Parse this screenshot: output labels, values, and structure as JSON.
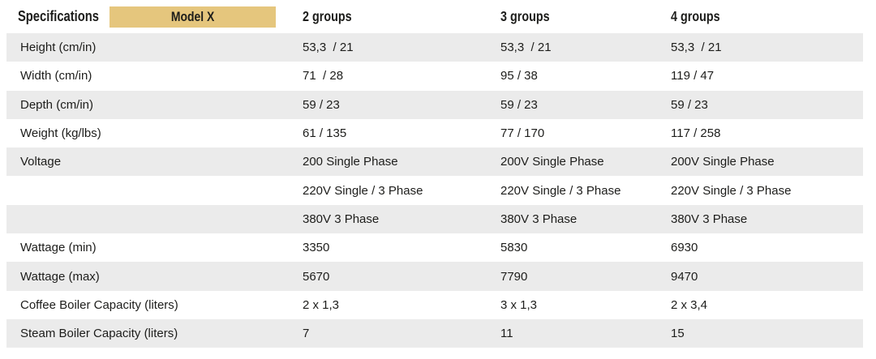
{
  "header": {
    "title": "Specifications",
    "model_badge": "Model X",
    "columns": [
      "2 groups",
      "3 groups",
      "4 groups"
    ]
  },
  "rows": [
    {
      "label": "Height (cm/in)",
      "values": [
        "53,3  / 21",
        "53,3  / 21",
        "53,3  / 21"
      ]
    },
    {
      "label": "Width (cm/in)",
      "values": [
        "71  / 28",
        "95 / 38",
        "119 / 47"
      ]
    },
    {
      "label": "Depth (cm/in)",
      "values": [
        "59 / 23",
        "59 / 23",
        "59 / 23"
      ]
    },
    {
      "label": "Weight (kg/lbs)",
      "values": [
        "61 / 135",
        "77 / 170",
        "117 / 258"
      ]
    },
    {
      "label": "Voltage",
      "values": [
        "200 Single Phase",
        "200V Single Phase",
        "200V Single Phase"
      ]
    },
    {
      "label": "",
      "values": [
        "220V Single / 3 Phase",
        "220V Single / 3 Phase",
        "220V Single / 3 Phase"
      ]
    },
    {
      "label": "",
      "values": [
        "380V 3 Phase",
        "380V 3 Phase",
        "380V 3 Phase"
      ]
    },
    {
      "label": "Wattage (min)",
      "values": [
        "3350",
        "5830",
        "6930"
      ]
    },
    {
      "label": "Wattage (max)",
      "values": [
        "5670",
        "7790",
        "9470"
      ]
    },
    {
      "label": "Coffee Boiler Capacity (liters)",
      "values": [
        "2 x 1,3",
        "3 x 1,3",
        "2 x 3,4"
      ]
    },
    {
      "label": "Steam Boiler Capacity (liters)",
      "values": [
        "7",
        "11",
        "15"
      ]
    }
  ],
  "colors": {
    "badge_bg": "#E5C67D",
    "row_alt": "#EBEBEB",
    "text": "#1D1D1B"
  }
}
